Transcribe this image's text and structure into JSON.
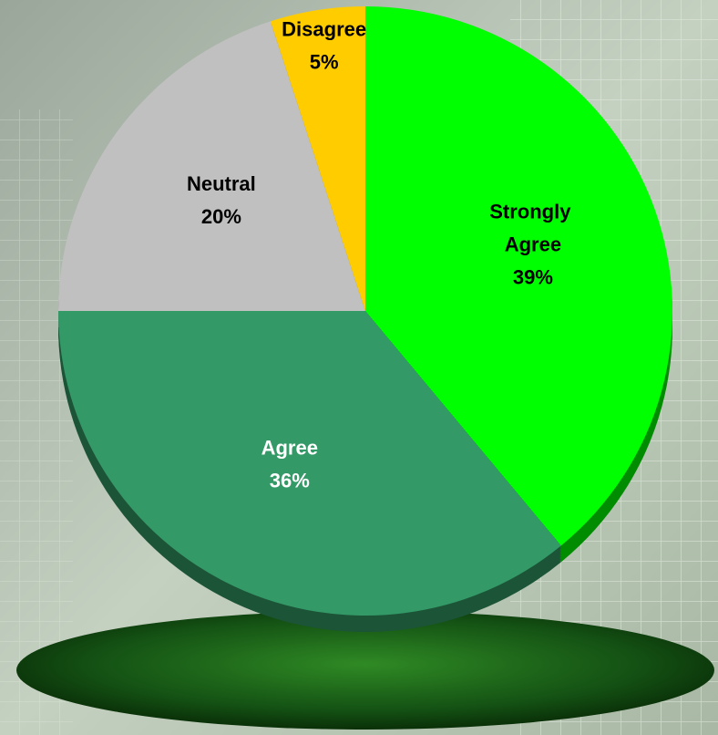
{
  "chart_data": {
    "type": "pie",
    "categories": [
      "Strongly Agree",
      "Agree",
      "Neutral",
      "Disagree"
    ],
    "values": [
      39,
      36,
      20,
      5
    ],
    "value_labels": [
      "39%",
      "36%",
      "20%",
      "5%"
    ],
    "colors": [
      "#00ff00",
      "#339966",
      "#c0c0c0",
      "#ffcc00"
    ]
  }
}
